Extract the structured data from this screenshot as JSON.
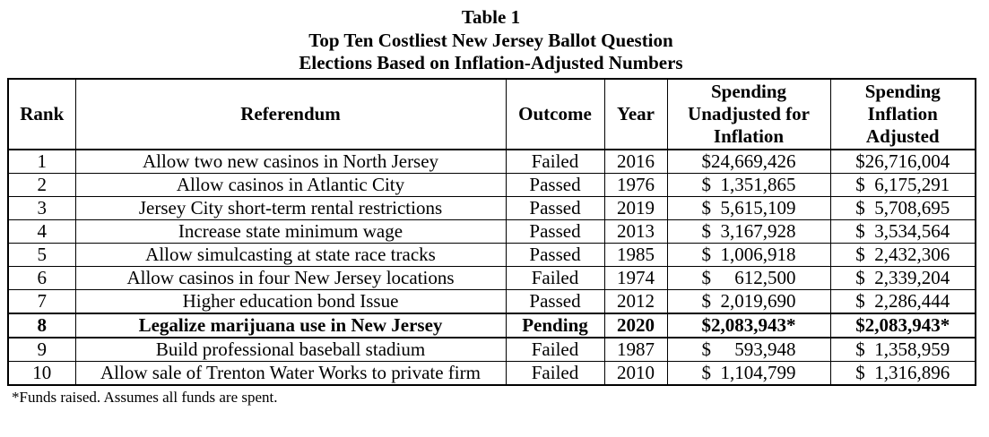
{
  "title": {
    "line1": "Table 1",
    "line2": "Top Ten Costliest New Jersey Ballot Question",
    "line3": "Elections Based on Inflation-Adjusted Numbers"
  },
  "table": {
    "currency_symbol": "$",
    "columns": {
      "rank": "Rank",
      "referendum": "Referendum",
      "outcome": "Outcome",
      "year": "Year",
      "spending_unadjusted": "Spending\nUnadjusted for\nInflation",
      "spending_adjusted": "Spending\nInflation\nAdjusted"
    },
    "rows": [
      {
        "rank": "1",
        "referendum": "Allow two new casinos in North Jersey",
        "outcome": "Failed",
        "year": "2016",
        "spending_unadjusted": "24,669,426",
        "spending_adjusted": "26,716,004",
        "bold": false
      },
      {
        "rank": "2",
        "referendum": "Allow casinos in Atlantic City",
        "outcome": "Passed",
        "year": "1976",
        "spending_unadjusted": "1,351,865",
        "spending_adjusted": "6,175,291",
        "bold": false
      },
      {
        "rank": "3",
        "referendum": "Jersey City short-term rental restrictions",
        "outcome": "Passed",
        "year": "2019",
        "spending_unadjusted": "5,615,109",
        "spending_adjusted": "5,708,695",
        "bold": false
      },
      {
        "rank": "4",
        "referendum": "Increase state minimum wage",
        "outcome": "Passed",
        "year": "2013",
        "spending_unadjusted": "3,167,928",
        "spending_adjusted": "3,534,564",
        "bold": false
      },
      {
        "rank": "5",
        "referendum": "Allow simulcasting at state race tracks",
        "outcome": "Passed",
        "year": "1985",
        "spending_unadjusted": "1,006,918",
        "spending_adjusted": "2,432,306",
        "bold": false
      },
      {
        "rank": "6",
        "referendum": "Allow casinos in four New Jersey locations",
        "outcome": "Failed",
        "year": "1974",
        "spending_unadjusted": "612,500",
        "spending_adjusted": "2,339,204",
        "bold": false
      },
      {
        "rank": "7",
        "referendum": "Higher education bond Issue",
        "outcome": "Passed",
        "year": "2012",
        "spending_unadjusted": "2,019,690",
        "spending_adjusted": "2,286,444",
        "bold": false
      },
      {
        "rank": "8",
        "referendum": "Legalize marijuana use in New Jersey",
        "outcome": "Pending",
        "year": "2020",
        "spending_unadjusted": "2,083,943*",
        "spending_adjusted": "2,083,943*",
        "bold": true
      },
      {
        "rank": "9",
        "referendum": "Build professional baseball stadium",
        "outcome": "Failed",
        "year": "1987",
        "spending_unadjusted": "593,948",
        "spending_adjusted": "1,358,959",
        "bold": false
      },
      {
        "rank": "10",
        "referendum": "Allow sale of Trenton Water Works to private firm",
        "outcome": "Failed",
        "year": "2010",
        "spending_unadjusted": "1,104,799",
        "spending_adjusted": "1,316,896",
        "bold": false
      }
    ]
  },
  "footnote": "*Funds raised. Assumes all funds are spent."
}
